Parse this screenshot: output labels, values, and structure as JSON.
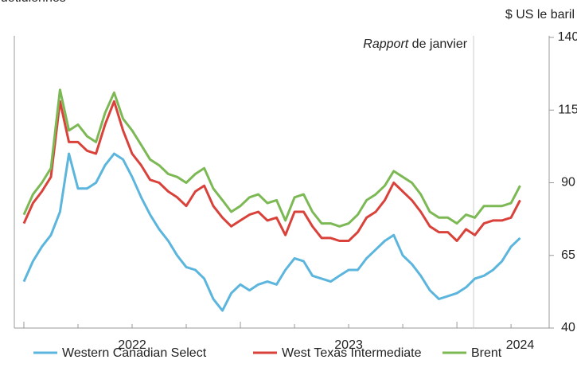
{
  "chart_data": {
    "type": "line",
    "subtitle": "quotidiennes",
    "y_label": "$ US le baril",
    "annotation": {
      "x": 2024.077,
      "emphasis": "Rapport",
      "text": "de janvier"
    },
    "x": [
      2022,
      2022.042,
      2022.083,
      2022.125,
      2022.167,
      2022.208,
      2022.25,
      2022.292,
      2022.333,
      2022.375,
      2022.417,
      2022.458,
      2022.5,
      2022.542,
      2022.583,
      2022.625,
      2022.667,
      2022.708,
      2022.75,
      2022.792,
      2022.833,
      2022.875,
      2022.917,
      2022.958,
      2023,
      2023.042,
      2023.083,
      2023.125,
      2023.167,
      2023.208,
      2023.25,
      2023.292,
      2023.333,
      2023.375,
      2023.417,
      2023.458,
      2023.5,
      2023.542,
      2023.583,
      2023.625,
      2023.667,
      2023.708,
      2023.75,
      2023.792,
      2023.833,
      2023.875,
      2023.917,
      2023.958,
      2024,
      2024.042,
      2024.083,
      2024.125,
      2024.167,
      2024.208,
      2024.25,
      2024.292
    ],
    "series": [
      {
        "name": "Western Canadian Select",
        "color": "#5bb5dc",
        "values": [
          56,
          63,
          68,
          72,
          80,
          100,
          88,
          88,
          90,
          96,
          100,
          98,
          92,
          85,
          79,
          74,
          70,
          65,
          61,
          60,
          57,
          50,
          46,
          52,
          55,
          53,
          55,
          56,
          55,
          60,
          64,
          63,
          58,
          57,
          56,
          58,
          60,
          60,
          64,
          67,
          70,
          72,
          65,
          62,
          58,
          53,
          50,
          51,
          52,
          54,
          57,
          58,
          60,
          63,
          68,
          71
        ]
      },
      {
        "name": "West Texas Intermediate",
        "color": "#d9423a",
        "values": [
          76,
          83,
          87,
          92,
          118,
          104,
          104,
          101,
          100,
          110,
          118,
          108,
          100,
          96,
          91,
          90,
          87,
          85,
          82,
          87,
          89,
          82,
          78,
          75,
          77,
          79,
          80,
          77,
          78,
          72,
          80,
          80,
          75,
          71,
          71,
          70,
          70,
          73,
          78,
          80,
          84,
          90,
          87,
          84,
          80,
          75,
          73,
          73,
          70,
          74,
          72,
          76,
          77,
          77,
          78,
          84
        ]
      },
      {
        "name": "Brent",
        "color": "#7cb955",
        "values": [
          79,
          86,
          90,
          95,
          122,
          108,
          110,
          106,
          104,
          114,
          121,
          112,
          108,
          103,
          98,
          96,
          93,
          92,
          90,
          93,
          95,
          88,
          84,
          80,
          82,
          85,
          86,
          83,
          84,
          77,
          85,
          86,
          80,
          76,
          76,
          75,
          76,
          79,
          84,
          86,
          89,
          94,
          92,
          90,
          86,
          80,
          78,
          78,
          76,
          79,
          78,
          82,
          82,
          82,
          83,
          89
        ]
      }
    ],
    "xlim": [
      2021.956,
      2024.426
    ],
    "xticks": [
      2022,
      2023,
      2024
    ],
    "xminorticks": [
      2022.25,
      2022.5,
      2022.75,
      2023.25,
      2023.5,
      2023.75,
      2024.25
    ],
    "ylim": [
      40,
      140
    ],
    "yticks": [
      40,
      65,
      90,
      115,
      140
    ],
    "y_axis_side": "right",
    "grid": false
  }
}
